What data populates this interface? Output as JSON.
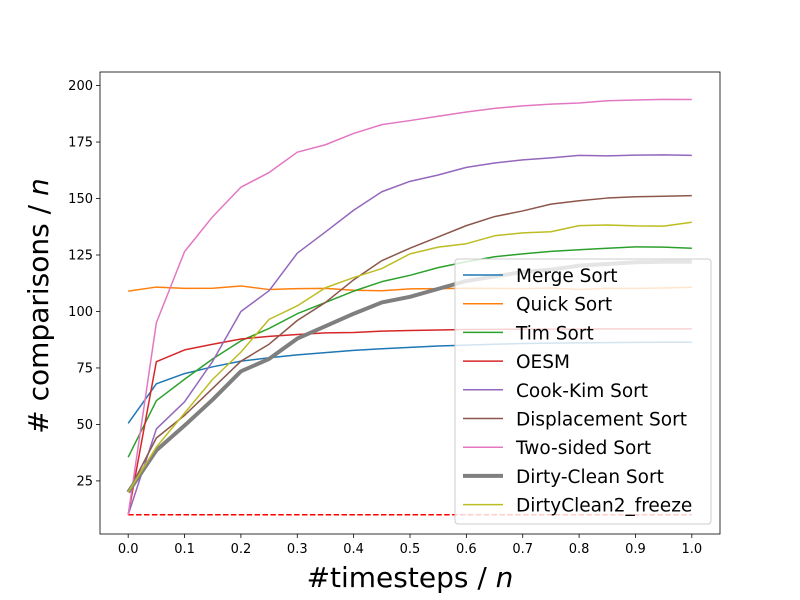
{
  "chart_data": {
    "type": "line",
    "xlabel_prefix": "#timesteps / ",
    "xlabel_var": "n",
    "ylabel_prefix": "# comparisons / ",
    "ylabel_var": "n",
    "xlim": [
      -0.05,
      1.05
    ],
    "ylim": [
      1.5,
      206
    ],
    "x_ticks": [
      0.0,
      0.1,
      0.2,
      0.3,
      0.4,
      0.5,
      0.6,
      0.7,
      0.8,
      0.9,
      1.0
    ],
    "x_tick_labels": [
      "0.0",
      "0.1",
      "0.2",
      "0.3",
      "0.4",
      "0.5",
      "0.6",
      "0.7",
      "0.8",
      "0.9",
      "1.0"
    ],
    "y_ticks": [
      25,
      50,
      75,
      100,
      125,
      150,
      175,
      200
    ],
    "y_tick_labels": [
      "25",
      "50",
      "75",
      "100",
      "125",
      "150",
      "175",
      "200"
    ],
    "grid": false,
    "legend_position": "lower-right",
    "x": [
      0.0,
      0.05,
      0.1,
      0.15,
      0.2,
      0.25,
      0.3,
      0.35,
      0.4,
      0.45,
      0.5,
      0.55,
      0.6,
      0.65,
      0.7,
      0.75,
      0.8,
      0.85,
      0.9,
      0.95,
      1.0
    ],
    "series": [
      {
        "name": "Merge Sort",
        "color": "#1f77b4",
        "width": 1.5,
        "values": [
          50.5,
          68,
          72.5,
          75.5,
          78,
          79.5,
          80.8,
          81.8,
          82.8,
          83.5,
          84.1,
          84.7,
          85.1,
          85.5,
          85.8,
          86,
          86.1,
          86.2,
          86.3,
          86.4,
          86.4
        ]
      },
      {
        "name": "Quick Sort",
        "color": "#ff7f0e",
        "width": 1.5,
        "values": [
          109,
          110.8,
          110.2,
          110.3,
          111.3,
          109.7,
          110.1,
          110.2,
          109.4,
          109.2,
          110,
          110.1,
          110.3,
          110.2,
          110.1,
          110.4,
          109.7,
          110.3,
          110.2,
          110.4,
          110.7
        ]
      },
      {
        "name": "Tim Sort",
        "color": "#2ca02c",
        "width": 1.5,
        "values": [
          35.5,
          60.5,
          70,
          79,
          87,
          92.5,
          99,
          104,
          109,
          113.2,
          116,
          119.4,
          122,
          124.2,
          125.5,
          126.6,
          127.3,
          128,
          128.6,
          128.5,
          128
        ]
      },
      {
        "name": "OESM",
        "color": "#d62728",
        "width": 1.5,
        "values": [
          10,
          77.8,
          83,
          85.5,
          87.8,
          89,
          89.8,
          90.5,
          90.7,
          91.3,
          91.6,
          91.8,
          92,
          92.1,
          92.2,
          92.2,
          92.2,
          92.3,
          92.3,
          92.3,
          92.3
        ]
      },
      {
        "name": "Cook-Kim Sort",
        "color": "#9467bd",
        "width": 1.5,
        "values": [
          10,
          48,
          60,
          78,
          100,
          109.2,
          125.8,
          135.2,
          144.8,
          153,
          157.6,
          160.4,
          163.8,
          165.7,
          167.1,
          168,
          169.1,
          168.9,
          169.2,
          169.3,
          169.1
        ]
      },
      {
        "name": "Displacement Sort",
        "color": "#8c564b",
        "width": 1.5,
        "values": [
          20,
          44,
          54,
          66,
          78,
          85.5,
          96,
          104,
          114,
          122.5,
          128,
          133,
          138,
          142,
          144.5,
          147.5,
          149,
          150.2,
          150.8,
          151,
          151.3
        ]
      },
      {
        "name": "Two-sided Sort",
        "color": "#e377c2",
        "width": 1.5,
        "values": [
          10,
          95,
          126.5,
          142,
          155,
          161.5,
          170.5,
          173.8,
          178.8,
          182.7,
          184.5,
          186.4,
          188.3,
          189.9,
          191,
          191.8,
          192.3,
          193.3,
          193.6,
          193.9,
          193.8
        ]
      },
      {
        "name": "Dirty-Clean Sort",
        "color": "#7f7f7f",
        "width": 4,
        "values": [
          20,
          38.5,
          49.5,
          61,
          73.5,
          79,
          88,
          93.5,
          99,
          104,
          106.5,
          110,
          113.5,
          115.5,
          117.5,
          118.5,
          120.3,
          121,
          121.8,
          122,
          122
        ]
      },
      {
        "name": "DirtyClean2_freeze",
        "color": "#bcbd22",
        "width": 1.5,
        "values": [
          20,
          40,
          55,
          70,
          82,
          96.5,
          102.5,
          110.5,
          115,
          119,
          125.5,
          128.5,
          130,
          133.5,
          134.8,
          135.3,
          138,
          138.3,
          137.9,
          137.8,
          139.5
        ]
      }
    ],
    "reference_line": {
      "y": 10,
      "x_range": [
        0.0,
        1.0
      ],
      "color": "#ff0000",
      "style": "dashed"
    }
  }
}
